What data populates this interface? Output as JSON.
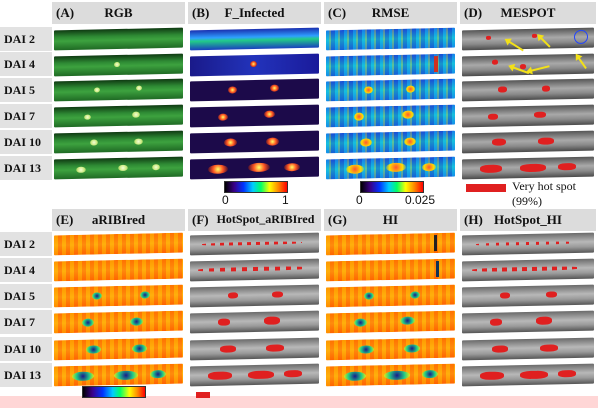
{
  "top_panels": [
    {
      "letter": "(A)",
      "title": "RGB"
    },
    {
      "letter": "(B)",
      "title": "F_Infected"
    },
    {
      "letter": "(C)",
      "title": "RMSE"
    },
    {
      "letter": "(D)",
      "title": "MESPOT"
    }
  ],
  "bottom_panels": [
    {
      "letter": "(E)",
      "title": "aRIBIred"
    },
    {
      "letter": "(F)",
      "title": "HotSpot_aRIBIred"
    },
    {
      "letter": "(G)",
      "title": "HI"
    },
    {
      "letter": "(H)",
      "title": "HotSpot_HI"
    }
  ],
  "rows": [
    "DAI 2",
    "DAI 4",
    "DAI 5",
    "DAI 7",
    "DAI 10",
    "DAI 13"
  ],
  "colorbar_b": {
    "min": "0",
    "max": "1"
  },
  "colorbar_c": {
    "min": "0",
    "max": "0.025"
  },
  "legend": {
    "label": "Very hot spot (99%)",
    "color": "#e02020"
  }
}
